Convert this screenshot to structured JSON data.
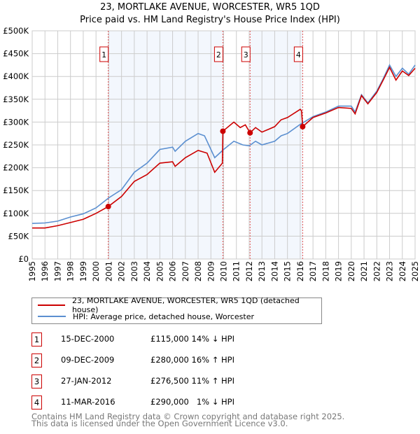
{
  "chart_data": {
    "type": "line",
    "title": "23, MORTLAKE AVENUE, WORCESTER, WR5 1QD",
    "subtitle": "Price paid vs. HM Land Registry's House Price Index (HPI)",
    "xlim": [
      1995,
      2025
    ],
    "ylim": [
      0,
      500000
    ],
    "x_ticks": [
      "1995",
      "1996",
      "1997",
      "1998",
      "1999",
      "2000",
      "2001",
      "2002",
      "2003",
      "2004",
      "2005",
      "2006",
      "2007",
      "2008",
      "2009",
      "2010",
      "2011",
      "2012",
      "2013",
      "2014",
      "2015",
      "2016",
      "2017",
      "2018",
      "2019",
      "2020",
      "2021",
      "2022",
      "2023",
      "2024",
      "2025"
    ],
    "y_ticks": [
      {
        "v": 0,
        "label": "£0"
      },
      {
        "v": 50000,
        "label": "£50K"
      },
      {
        "v": 100000,
        "label": "£100K"
      },
      {
        "v": 150000,
        "label": "£150K"
      },
      {
        "v": 200000,
        "label": "£200K"
      },
      {
        "v": 250000,
        "label": "£250K"
      },
      {
        "v": 300000,
        "label": "£300K"
      },
      {
        "v": 350000,
        "label": "£350K"
      },
      {
        "v": 400000,
        "label": "£400K"
      },
      {
        "v": 450000,
        "label": "£450K"
      },
      {
        "v": 500000,
        "label": "£500K"
      }
    ],
    "grid": true,
    "shaded_ranges": [
      [
        2000.96,
        2009.94
      ],
      [
        2012.07,
        2016.19
      ]
    ],
    "series": [
      {
        "name": "23, MORTLAKE AVENUE, WORCESTER, WR5 1QD (detached house)",
        "color": "#cc0000",
        "x": [
          1995,
          1996,
          1997,
          1998,
          1999,
          2000,
          2000.96,
          2002,
          2003,
          2004,
          2005,
          2006,
          2006.2,
          2007,
          2008,
          2008.7,
          2009.3,
          2009.9,
          2009.94,
          2010.8,
          2011.3,
          2011.7,
          2012.07,
          2012.5,
          2013,
          2014,
          2014.5,
          2015,
          2016,
          2016.1,
          2016.19,
          2017,
          2018,
          2019,
          2020,
          2020.3,
          2020.8,
          2021.3,
          2022,
          2022.5,
          2023,
          2023.5,
          2024,
          2024.5,
          2025
        ],
        "y": [
          68000,
          68000,
          73000,
          80000,
          87000,
          100000,
          115000,
          137000,
          170000,
          185000,
          210000,
          213000,
          203000,
          222000,
          238000,
          232000,
          190000,
          210000,
          280000,
          300000,
          288000,
          294000,
          276500,
          288000,
          278000,
          290000,
          305000,
          310000,
          328000,
          325000,
          290000,
          310000,
          320000,
          332000,
          330000,
          318000,
          358000,
          340000,
          365000,
          392000,
          420000,
          392000,
          412000,
          402000,
          418000
        ]
      },
      {
        "name": "HPI: Average price, detached house, Worcester",
        "color": "#5b8fd0",
        "x": [
          1995,
          1996,
          1997,
          1998,
          1999,
          2000,
          2001,
          2002,
          2003,
          2004,
          2005,
          2006,
          2006.2,
          2007,
          2008,
          2008.5,
          2009.3,
          2010,
          2010.8,
          2011.5,
          2012,
          2012.5,
          2013,
          2014,
          2014.5,
          2015,
          2016,
          2017,
          2018,
          2019,
          2020,
          2020.3,
          2020.8,
          2021.3,
          2022,
          2022.5,
          2023,
          2023.3,
          2023.5,
          2024,
          2024.5,
          2025
        ],
        "y": [
          78000,
          79000,
          83000,
          92000,
          99000,
          112000,
          134000,
          152000,
          190000,
          210000,
          240000,
          245000,
          236000,
          258000,
          275000,
          270000,
          222000,
          240000,
          258000,
          250000,
          248000,
          258000,
          250000,
          258000,
          270000,
          275000,
          295000,
          312000,
          322000,
          335000,
          335000,
          322000,
          360000,
          342000,
          368000,
          395000,
          425000,
          410000,
          400000,
          418000,
          405000,
          425000
        ]
      }
    ],
    "sales": [
      {
        "n": "1",
        "x": 2000.96,
        "y": 115000,
        "date": "15-DEC-2000",
        "price": "£115,000",
        "hpi": "14% ↓ HPI"
      },
      {
        "n": "2",
        "x": 2009.94,
        "y": 280000,
        "date": "09-DEC-2009",
        "price": "£280,000",
        "hpi": "16% ↑ HPI"
      },
      {
        "n": "3",
        "x": 2012.07,
        "y": 276500,
        "date": "27-JAN-2012",
        "price": "£276,500",
        "hpi": "11% ↑ HPI"
      },
      {
        "n": "4",
        "x": 2016.19,
        "y": 290000,
        "date": "11-MAR-2016",
        "price": "£290,000",
        "hpi": "1% ↓ HPI"
      }
    ]
  },
  "footer": {
    "line1": "Contains HM Land Registry data © Crown copyright and database right 2025.",
    "line2": "This data is licensed under the Open Government Licence v3.0."
  }
}
